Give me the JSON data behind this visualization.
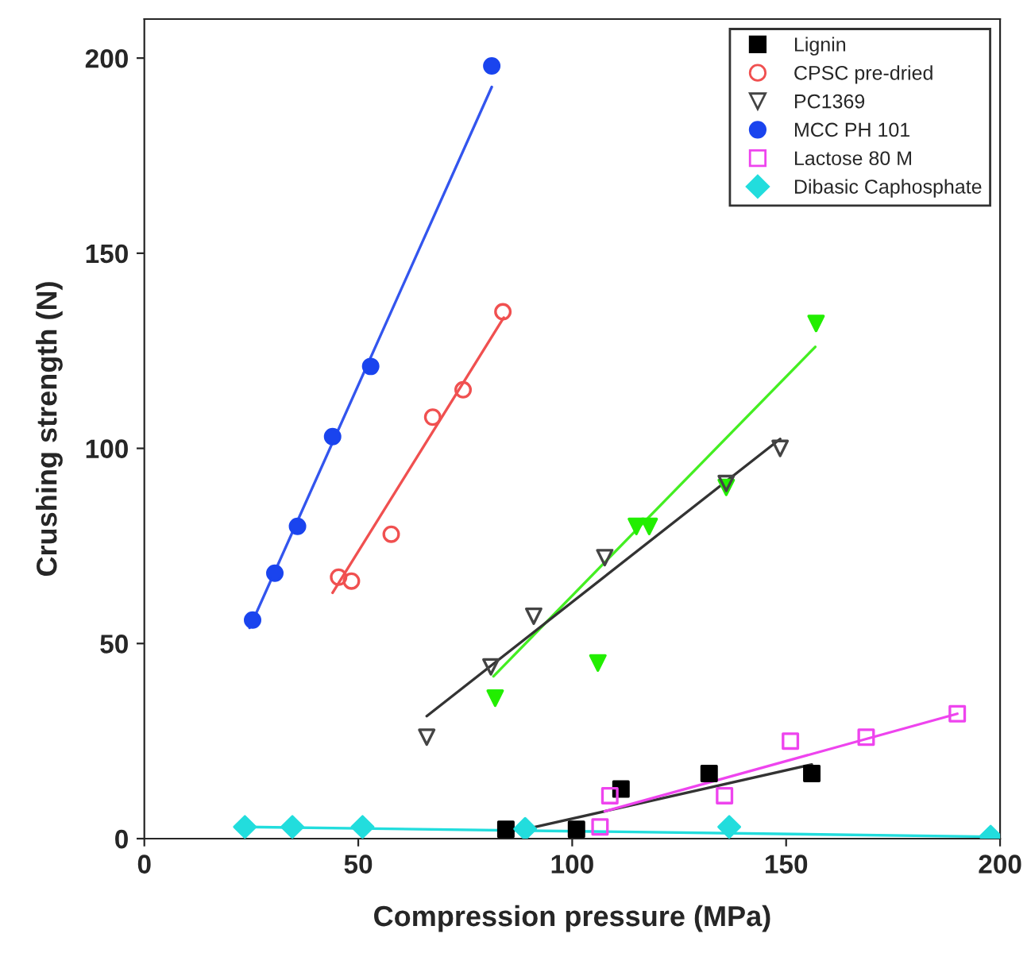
{
  "chart_data": {
    "type": "scatter",
    "xlabel": "Compression pressure (MPa)",
    "ylabel": "Crushing strength (N)",
    "xlim": [
      0,
      200
    ],
    "xticks": [
      0,
      50,
      100,
      150,
      200
    ],
    "ylim": [
      0,
      210
    ],
    "yticks": [
      0,
      50,
      100,
      150,
      200
    ],
    "grid": false,
    "legend": "top right",
    "series": [
      {
        "name": "Lignin",
        "color": "#000000",
        "marker": "square",
        "x": [
          84.5,
          101,
          111.4,
          132,
          156
        ],
        "values": [
          2.4,
          2.4,
          12.7,
          16.7,
          16.7
        ]
      },
      {
        "name": "CPSC pre-dried",
        "color": "#f05050",
        "marker": "circle_open",
        "x": [
          45.4,
          48.4,
          57.7,
          67.4,
          74.5,
          83.8
        ],
        "values": [
          67,
          66,
          78,
          108,
          115,
          135
        ]
      },
      {
        "color": "#22ee00",
        "marker": "triangle_down",
        "x": [
          82,
          106,
          115,
          118,
          136,
          157
        ],
        "values": [
          36,
          45,
          80,
          80,
          90,
          132
        ]
      },
      {
        "name": "PC1369",
        "color": "#444444",
        "marker": "triangle_down_open",
        "x": [
          66,
          81,
          91,
          107.6,
          136,
          148.6
        ],
        "values": [
          26,
          44,
          57,
          72,
          91,
          100
        ]
      },
      {
        "name": "MCC PH 101",
        "color": "#1a44ee",
        "marker": "circle",
        "x": [
          25.3,
          30.5,
          35.8,
          44,
          52.9,
          81.2
        ],
        "values": [
          56,
          68,
          80,
          103,
          121,
          198
        ]
      },
      {
        "name": "Lactose 80 M",
        "color": "#ee44ee",
        "marker": "square_open",
        "x": [
          106.5,
          108.8,
          135.6,
          151,
          168.7,
          190
        ],
        "values": [
          3,
          11,
          11,
          25,
          26,
          32
        ]
      },
      {
        "name": "Dibasic Caphosphate",
        "color": "#22dddd",
        "marker": "diamond",
        "x": [
          23.5,
          34.6,
          51,
          89,
          136.7,
          197.8
        ],
        "values": [
          3,
          3,
          3,
          2.5,
          3,
          0.5
        ]
      },
      {
        "type": "line",
        "color": "#333333",
        "x": [
          89,
          156
        ],
        "values": [
          2.4,
          19
        ]
      },
      {
        "type": "line",
        "color": "#f05050",
        "x": [
          44,
          84
        ],
        "values": [
          63,
          133.5
        ]
      },
      {
        "type": "line",
        "color": "#44ee22",
        "x": [
          81.6,
          156.8
        ],
        "values": [
          41.6,
          126
        ]
      },
      {
        "type": "line",
        "color": "#333333",
        "x": [
          66,
          148.6
        ],
        "values": [
          31.4,
          102.4
        ]
      },
      {
        "type": "line",
        "color": "#3355ee",
        "x": [
          24.6,
          81.2
        ],
        "values": [
          54,
          192.6
        ]
      },
      {
        "type": "line",
        "color": "#ee44ee",
        "x": [
          107.6,
          190
        ],
        "values": [
          7,
          32
        ]
      },
      {
        "type": "line",
        "color": "#22dddd",
        "x": [
          23.5,
          198
        ],
        "values": [
          3,
          0.5
        ]
      }
    ]
  }
}
